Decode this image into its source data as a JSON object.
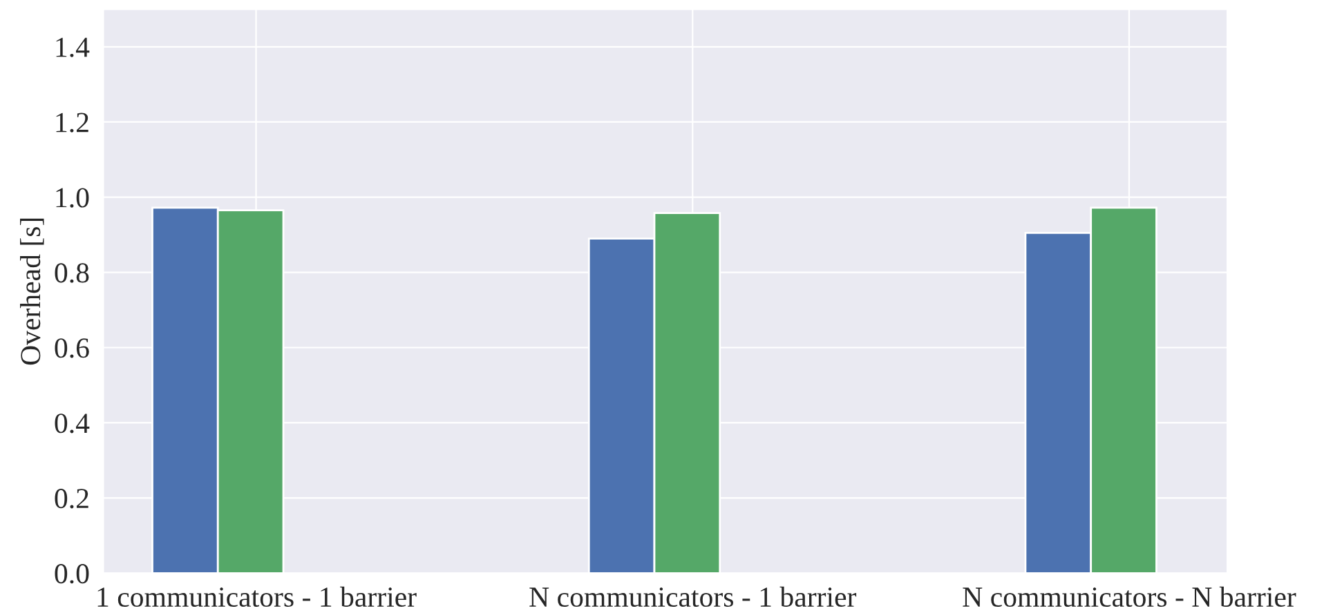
{
  "chart_data": {
    "type": "bar",
    "ylabel": "Overhead [s]",
    "categories": [
      "1 communicators - 1 barrier",
      "N communicators - 1 barrier",
      "N communicators - N barrier"
    ],
    "series": [
      {
        "color": "#4c72b0",
        "values": [
          0.972,
          0.89,
          0.905
        ]
      },
      {
        "color": "#55a868",
        "values": [
          0.965,
          0.958,
          0.972
        ]
      }
    ],
    "ylim": [
      0,
      1.5
    ],
    "yticks": [
      {
        "value": 0,
        "label": "0.0"
      },
      0.2,
      0.4,
      0.6,
      0.8,
      {
        "value": 1,
        "label": "1.0"
      },
      1.2,
      1.4
    ],
    "grid": true
  }
}
